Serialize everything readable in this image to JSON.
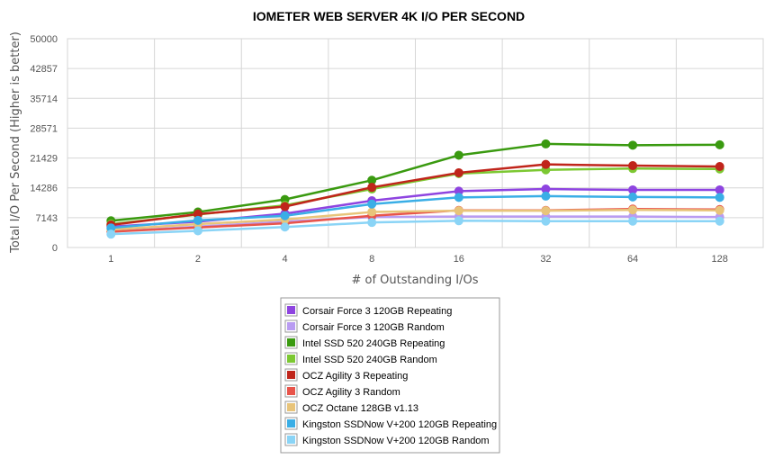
{
  "chart_data": {
    "type": "line",
    "title": "IOMETER WEB SERVER 4K I/O PER SECOND",
    "xlabel": "# of Outstanding I/Os",
    "ylabel": "Total I/O Per Second (Higher is better)",
    "categories": [
      "1",
      "2",
      "4",
      "8",
      "16",
      "32",
      "64",
      "128"
    ],
    "ylim": [
      0,
      50000
    ],
    "yticks": [
      "0",
      "7143",
      "14286",
      "21429",
      "28571",
      "35714",
      "42857",
      "50000"
    ],
    "grid": true,
    "legend_position": "bottom",
    "series": [
      {
        "name": "Corsair Force 3 120GB Repeating",
        "color": "#8e44e0",
        "values": [
          5000,
          6200,
          8100,
          11200,
          13500,
          14000,
          13800,
          13800
        ]
      },
      {
        "name": "Corsair Force 3 120GB Random",
        "color": "#b99cf2",
        "values": [
          3800,
          5000,
          6200,
          7300,
          7400,
          7400,
          7400,
          7300
        ]
      },
      {
        "name": "Intel SSD 520 240GB Repeating",
        "color": "#3a9a10",
        "values": [
          6400,
          8500,
          11500,
          16100,
          22100,
          24800,
          24500,
          24600
        ]
      },
      {
        "name": "Intel SSD 520 240GB Random",
        "color": "#7cc832",
        "values": [
          5600,
          7900,
          10100,
          14000,
          17700,
          18600,
          18900,
          18800
        ]
      },
      {
        "name": "OCZ Agility 3 Repeating",
        "color": "#c0251b",
        "values": [
          5400,
          8000,
          9800,
          14400,
          17900,
          19900,
          19600,
          19400
        ]
      },
      {
        "name": "OCZ Agility 3 Random",
        "color": "#e8544a",
        "values": [
          3800,
          4800,
          5800,
          7600,
          8900,
          8900,
          9200,
          9100
        ]
      },
      {
        "name": "OCZ Octane 128GB v1.13",
        "color": "#e8c47a",
        "values": [
          4300,
          5600,
          6700,
          8500,
          8800,
          8800,
          9000,
          8900
        ]
      },
      {
        "name": "Kingston SSDNow V+200 120GB Repeating",
        "color": "#3aaee6",
        "values": [
          4700,
          6500,
          7600,
          10400,
          12000,
          12300,
          12100,
          12000
        ]
      },
      {
        "name": "Kingston SSDNow V+200 120GB Random",
        "color": "#8ad4f6",
        "values": [
          3200,
          4000,
          4900,
          6000,
          6400,
          6300,
          6300,
          6300
        ]
      }
    ]
  }
}
